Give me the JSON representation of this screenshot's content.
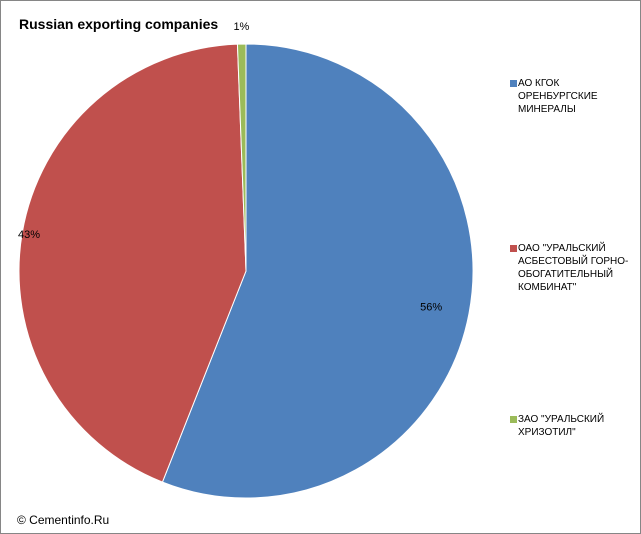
{
  "chart_data": {
    "type": "pie",
    "title": "Russian exporting companies",
    "series": [
      {
        "name": "АО КГОК ОРЕНБУРГСКИЕ МИНЕРАЛЫ",
        "value": 56,
        "label": "56%",
        "color": "#4F81BD"
      },
      {
        "name": "ОАО \"УРАЛЬСКИЙ АСБЕСТОВЫЙ ГОРНО-ОБОГАТИТЕЛЬНЫЙ КОМБИНАТ\"",
        "value": 43.4,
        "label": "43%",
        "color": "#C0504D"
      },
      {
        "name": "ЗАО \"УРАЛЬСКИЙ ХРИЗОТИЛ\"",
        "value": 0.6,
        "label": "1%",
        "color": "#9BBB59"
      }
    ],
    "legend_position": "right"
  },
  "footer": {
    "copyright": "© Cementinfo.Ru"
  }
}
